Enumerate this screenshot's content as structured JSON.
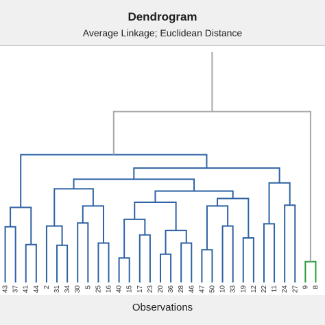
{
  "chart_data": {
    "type": "dendrogram",
    "title": "Dendrogram",
    "subtitle": "Average Linkage; Euclidean Distance",
    "xlabel": "Observations",
    "ylabel": "",
    "grid": false,
    "colors": {
      "cluster_1": "#2e62a4",
      "cluster_2": "#2e9a3a",
      "root": "#a8a8a8"
    },
    "leaves": [
      "43",
      "37",
      "41",
      "44",
      "2",
      "31",
      "34",
      "30",
      "5",
      "25",
      "16",
      "40",
      "15",
      "17",
      "23",
      "20",
      "36",
      "28",
      "46",
      "47",
      "50",
      "10",
      "33",
      "19",
      "12",
      "22",
      "11",
      "24",
      "27",
      "9",
      "8"
    ],
    "leaf_clusters": [
      1,
      1,
      1,
      1,
      1,
      1,
      1,
      1,
      1,
      1,
      1,
      1,
      1,
      1,
      1,
      1,
      1,
      1,
      1,
      1,
      1,
      1,
      1,
      1,
      1,
      1,
      1,
      1,
      1,
      2,
      2
    ],
    "merges": [
      {
        "a": "L0",
        "b": "L1",
        "h": 7.5,
        "c": "cluster_1"
      },
      {
        "a": "L2",
        "b": "L3",
        "h": 5.1,
        "c": "cluster_1"
      },
      {
        "a": "M0",
        "b": "M1",
        "h": 10.1,
        "c": "cluster_1"
      },
      {
        "a": "L5",
        "b": "L6",
        "h": 5.0,
        "c": "cluster_1"
      },
      {
        "a": "L4",
        "b": "M3",
        "h": 7.6,
        "c": "cluster_1"
      },
      {
        "a": "L7",
        "b": "L8",
        "h": 8.0,
        "c": "cluster_1"
      },
      {
        "a": "L9",
        "b": "L10",
        "h": 5.3,
        "c": "cluster_1"
      },
      {
        "a": "M5",
        "b": "M6",
        "h": 10.3,
        "c": "cluster_1"
      },
      {
        "a": "M4",
        "b": "M7",
        "h": 12.6,
        "c": "cluster_1"
      },
      {
        "a": "L11",
        "b": "L12",
        "h": 3.3,
        "c": "cluster_1"
      },
      {
        "a": "L13",
        "b": "L14",
        "h": 6.4,
        "c": "cluster_1"
      },
      {
        "a": "M9",
        "b": "M10",
        "h": 8.5,
        "c": "cluster_1"
      },
      {
        "a": "L15",
        "b": "L16",
        "h": 3.8,
        "c": "cluster_1"
      },
      {
        "a": "L17",
        "b": "L18",
        "h": 5.3,
        "c": "cluster_1"
      },
      {
        "a": "M12",
        "b": "M13",
        "h": 7.0,
        "c": "cluster_1"
      },
      {
        "a": "M11",
        "b": "M14",
        "h": 10.8,
        "c": "cluster_1"
      },
      {
        "a": "L19",
        "b": "L20",
        "h": 4.4,
        "c": "cluster_1"
      },
      {
        "a": "L21",
        "b": "L22",
        "h": 7.6,
        "c": "cluster_1"
      },
      {
        "a": "M16",
        "b": "M17",
        "h": 10.3,
        "c": "cluster_1"
      },
      {
        "a": "L23",
        "b": "L24",
        "h": 6.0,
        "c": "cluster_1"
      },
      {
        "a": "M18",
        "b": "M19",
        "h": 11.3,
        "c": "cluster_1"
      },
      {
        "a": "M15",
        "b": "M20",
        "h": 12.3,
        "c": "cluster_1"
      },
      {
        "a": "M8",
        "b": "M21",
        "h": 13.9,
        "c": "cluster_1"
      },
      {
        "a": "L25",
        "b": "L26",
        "h": 7.9,
        "c": "cluster_1"
      },
      {
        "a": "L27",
        "b": "L28",
        "h": 10.4,
        "c": "cluster_1"
      },
      {
        "a": "M23",
        "b": "M24",
        "h": 13.4,
        "c": "cluster_1"
      },
      {
        "a": "M22",
        "b": "M25",
        "h": 15.4,
        "c": "cluster_1"
      },
      {
        "a": "M2",
        "b": "M26",
        "h": 17.2,
        "c": "cluster_1"
      },
      {
        "a": "L29",
        "b": "L30",
        "h": 2.8,
        "c": "cluster_2"
      },
      {
        "a": "M27",
        "b": "M28",
        "h": 23.0,
        "c": "root"
      }
    ],
    "ylim": [
      0,
      31
    ]
  }
}
